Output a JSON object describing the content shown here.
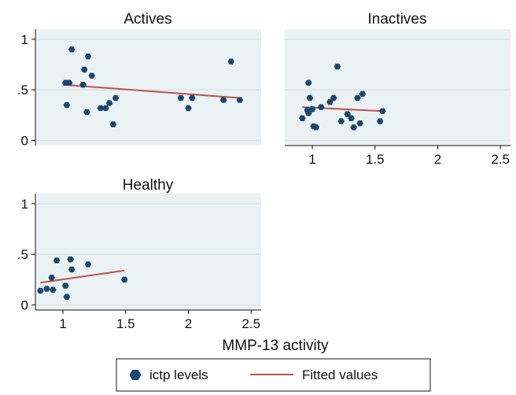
{
  "chart_data": {
    "type": "scatter",
    "xlabel": "MMP-13 activity",
    "legend": {
      "placement": "bottom",
      "entries": [
        {
          "label": "ictp levels",
          "marker": "hexagon",
          "color": "#1a476f"
        },
        {
          "label": "Fitted values",
          "marker": "line",
          "color": "#c0504d"
        }
      ]
    },
    "colors": {
      "points": "#1a476f",
      "fit": "#c0504d",
      "plot_bg": "#eaf2f3",
      "grid": "#d8e6e8"
    },
    "x_ticks": [
      1,
      1.5,
      2,
      2.5
    ],
    "x_tick_labels": [
      "1",
      "1.5",
      "2",
      "2.5"
    ],
    "y_ticks": [
      0,
      0.5,
      1
    ],
    "y_tick_labels": [
      "0",
      ".5",
      "1"
    ],
    "xlim": [
      0.78,
      2.58
    ],
    "ylim": [
      -0.05,
      1.1
    ],
    "panels": [
      {
        "title": "Actives",
        "points": [
          [
            1.02,
            0.57
          ],
          [
            1.05,
            0.57
          ],
          [
            1.07,
            0.9
          ],
          [
            1.03,
            0.35
          ],
          [
            1.17,
            0.7
          ],
          [
            1.2,
            0.83
          ],
          [
            1.16,
            0.55
          ],
          [
            1.23,
            0.64
          ],
          [
            1.19,
            0.28
          ],
          [
            1.3,
            0.32
          ],
          [
            1.34,
            0.32
          ],
          [
            1.37,
            0.37
          ],
          [
            1.4,
            0.16
          ],
          [
            1.42,
            0.42
          ],
          [
            1.94,
            0.42
          ],
          [
            2.0,
            0.32
          ],
          [
            2.03,
            0.42
          ],
          [
            2.34,
            0.78
          ],
          [
            2.28,
            0.4
          ],
          [
            2.41,
            0.4
          ]
        ],
        "fit": [
          [
            1.01,
            0.55
          ],
          [
            2.41,
            0.42
          ]
        ]
      },
      {
        "title": "Inactives",
        "points": [
          [
            0.92,
            0.22
          ],
          [
            0.97,
            0.57
          ],
          [
            0.96,
            0.3
          ],
          [
            0.98,
            0.42
          ],
          [
            1.0,
            0.31
          ],
          [
            0.97,
            0.27
          ],
          [
            1.01,
            0.14
          ],
          [
            1.03,
            0.13
          ],
          [
            1.07,
            0.33
          ],
          [
            1.14,
            0.38
          ],
          [
            1.17,
            0.42
          ],
          [
            1.2,
            0.73
          ],
          [
            1.23,
            0.19
          ],
          [
            1.28,
            0.26
          ],
          [
            1.31,
            0.22
          ],
          [
            1.33,
            0.13
          ],
          [
            1.36,
            0.42
          ],
          [
            1.4,
            0.46
          ],
          [
            1.38,
            0.17
          ],
          [
            1.54,
            0.19
          ],
          [
            1.56,
            0.29
          ]
        ],
        "fit": [
          [
            0.92,
            0.33
          ],
          [
            1.56,
            0.29
          ]
        ]
      },
      {
        "title": "Healthy",
        "points": [
          [
            0.82,
            0.14
          ],
          [
            0.87,
            0.16
          ],
          [
            0.91,
            0.27
          ],
          [
            0.92,
            0.15
          ],
          [
            0.95,
            0.44
          ],
          [
            1.02,
            0.19
          ],
          [
            1.03,
            0.08
          ],
          [
            1.06,
            0.45
          ],
          [
            1.07,
            0.35
          ],
          [
            1.2,
            0.4
          ],
          [
            1.49,
            0.25
          ]
        ],
        "fit": [
          [
            0.82,
            0.22
          ],
          [
            1.49,
            0.34
          ]
        ]
      }
    ]
  }
}
